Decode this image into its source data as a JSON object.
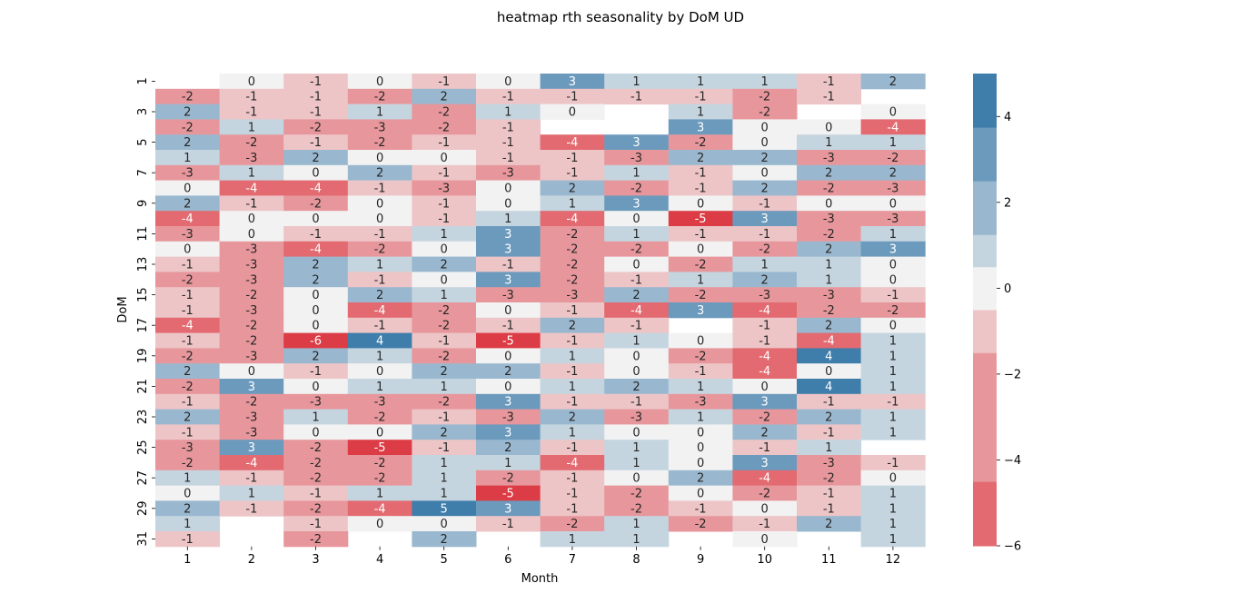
{
  "chart_data": {
    "type": "heatmap",
    "title": "heatmap rth seasonality by DoM UD",
    "xlabel": "Month",
    "ylabel": "DoM",
    "x_categories": [
      "1",
      "2",
      "3",
      "4",
      "5",
      "6",
      "7",
      "8",
      "9",
      "10",
      "11",
      "12"
    ],
    "y_categories": [
      "1",
      "2",
      "3",
      "4",
      "5",
      "6",
      "7",
      "8",
      "9",
      "10",
      "11",
      "12",
      "13",
      "14",
      "15",
      "16",
      "17",
      "18",
      "19",
      "20",
      "21",
      "22",
      "23",
      "24",
      "25",
      "26",
      "27",
      "28",
      "29",
      "30",
      "31"
    ],
    "y_tick_labels": [
      "1",
      "3",
      "5",
      "7",
      "9",
      "11",
      "13",
      "15",
      "17",
      "19",
      "21",
      "23",
      "25",
      "27",
      "29",
      "31"
    ],
    "colorbar": {
      "vmin": -6,
      "vmax": 5,
      "ticks": [
        "4",
        "2",
        "0",
        "−2",
        "−4",
        "−6"
      ]
    },
    "colors": {
      "negative_strong": "#dc3c45",
      "neutral": "#f2f2f2",
      "positive_strong": "#3f7dab"
    },
    "values": [
      [
        null,
        0,
        -1,
        0,
        -1,
        0,
        3,
        1,
        1,
        1,
        -1,
        2
      ],
      [
        -2,
        -1,
        -1,
        -2,
        2,
        -1,
        -1,
        -1,
        -1,
        -2,
        -1,
        null
      ],
      [
        2,
        -1,
        -1,
        1,
        -2,
        1,
        0,
        null,
        1,
        -2,
        null,
        0
      ],
      [
        -2,
        1,
        -2,
        -3,
        -2,
        -1,
        null,
        null,
        3,
        0,
        0,
        -4
      ],
      [
        2,
        -2,
        -1,
        -2,
        -1,
        -1,
        -4,
        3,
        -2,
        0,
        1,
        1
      ],
      [
        1,
        -3,
        2,
        0,
        0,
        -1,
        -1,
        -3,
        2,
        2,
        -3,
        -2
      ],
      [
        -3,
        1,
        0,
        2,
        -1,
        -3,
        -1,
        1,
        -1,
        0,
        2,
        2
      ],
      [
        0,
        -4,
        -4,
        -1,
        -3,
        0,
        2,
        -2,
        -1,
        2,
        -2,
        -3
      ],
      [
        2,
        -1,
        -2,
        0,
        -1,
        0,
        1,
        3,
        0,
        -1,
        0,
        0
      ],
      [
        -4,
        0,
        0,
        0,
        -1,
        1,
        -4,
        0,
        -5,
        3,
        -3,
        -3
      ],
      [
        -3,
        0,
        -1,
        -1,
        1,
        3,
        -2,
        1,
        -1,
        -1,
        -2,
        1
      ],
      [
        0,
        -3,
        -4,
        -2,
        0,
        3,
        -2,
        -2,
        0,
        -2,
        2,
        3
      ],
      [
        -1,
        -3,
        2,
        1,
        2,
        -1,
        -2,
        0,
        -2,
        1,
        1,
        0
      ],
      [
        -2,
        -3,
        2,
        -1,
        0,
        3,
        -2,
        -1,
        1,
        2,
        1,
        0
      ],
      [
        -1,
        -2,
        0,
        2,
        1,
        -3,
        -3,
        2,
        -2,
        -3,
        -3,
        -1
      ],
      [
        -1,
        -3,
        0,
        -4,
        -2,
        0,
        -1,
        -4,
        3,
        -4,
        -2,
        -2
      ],
      [
        -4,
        -2,
        0,
        -1,
        -2,
        -1,
        2,
        -1,
        null,
        -1,
        2,
        0
      ],
      [
        -1,
        -2,
        -6,
        4,
        -1,
        -5,
        -1,
        1,
        0,
        -1,
        -4,
        1
      ],
      [
        -2,
        -3,
        2,
        1,
        -2,
        0,
        1,
        0,
        -2,
        -4,
        4,
        1
      ],
      [
        2,
        0,
        -1,
        0,
        2,
        2,
        -1,
        0,
        -1,
        -4,
        0,
        1
      ],
      [
        -2,
        3,
        0,
        1,
        1,
        0,
        1,
        2,
        1,
        0,
        4,
        1
      ],
      [
        -1,
        -2,
        -3,
        -3,
        -2,
        3,
        -1,
        -1,
        -3,
        3,
        -1,
        -1
      ],
      [
        2,
        -3,
        1,
        -2,
        -1,
        -3,
        2,
        -3,
        1,
        -2,
        2,
        1
      ],
      [
        -1,
        -3,
        0,
        0,
        2,
        3,
        1,
        0,
        0,
        2,
        -1,
        1
      ],
      [
        -3,
        3,
        -2,
        -5,
        -1,
        2,
        -1,
        1,
        0,
        -1,
        1,
        null
      ],
      [
        -2,
        -4,
        -2,
        -2,
        1,
        1,
        -4,
        1,
        0,
        3,
        -3,
        -1
      ],
      [
        1,
        -1,
        -2,
        -2,
        1,
        -2,
        -1,
        0,
        2,
        -4,
        -2,
        0
      ],
      [
        0,
        1,
        -1,
        1,
        1,
        -5,
        -1,
        -2,
        0,
        -2,
        -1,
        1
      ],
      [
        2,
        -1,
        -2,
        -4,
        5,
        3,
        -1,
        -2,
        -1,
        0,
        -1,
        1
      ],
      [
        1,
        null,
        -1,
        0,
        0,
        -1,
        -2,
        1,
        -2,
        -1,
        2,
        1
      ],
      [
        -1,
        null,
        -2,
        null,
        2,
        null,
        1,
        1,
        null,
        0,
        null,
        1
      ]
    ]
  }
}
